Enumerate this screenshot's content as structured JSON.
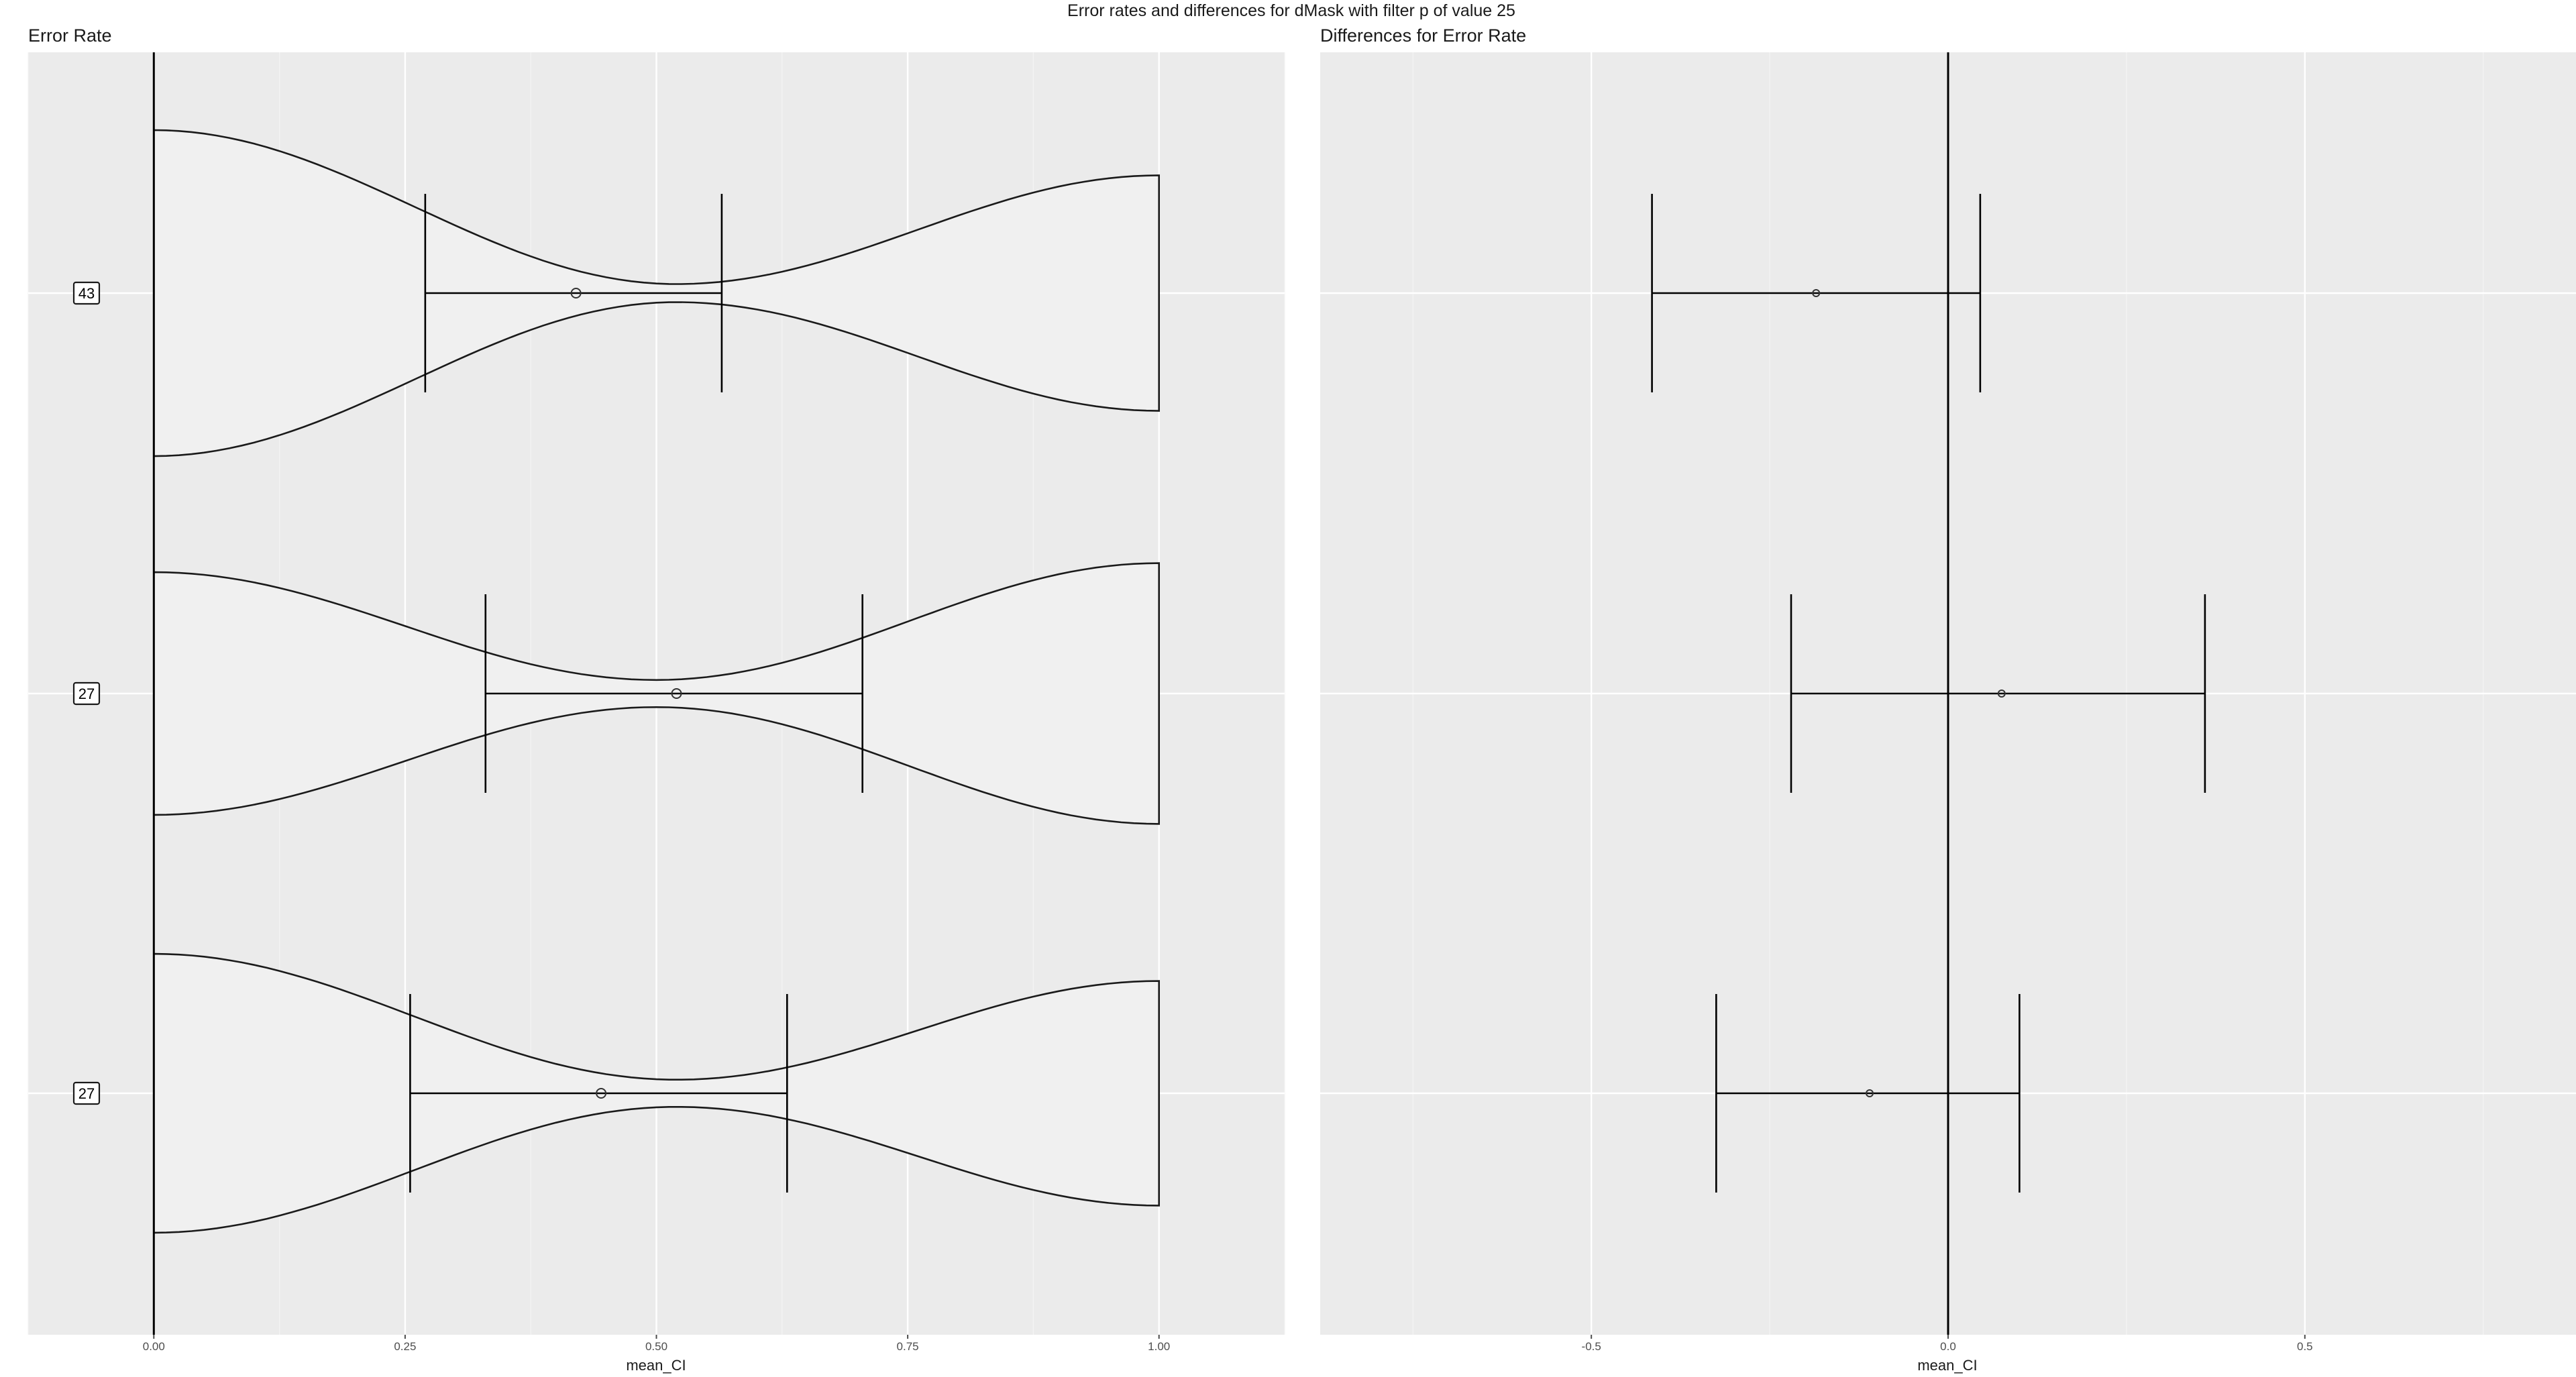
{
  "figure": {
    "title": "Error rates and differences for dMask with filter p of value 25"
  },
  "chart_data": [
    {
      "type": "violin",
      "title": "Error Rate",
      "xlabel": "mean_CI",
      "ylabel": "",
      "xlim": [
        -0.125,
        1.125
      ],
      "x_ticks": [
        0.0,
        0.25,
        0.5,
        0.75,
        1.0
      ],
      "x_tick_labels": [
        "0.00",
        "0.25",
        "0.50",
        "0.75",
        "1.00"
      ],
      "grid": true,
      "categories": [
        "43",
        "27",
        "27"
      ],
      "series": [
        {
          "label": "43",
          "mean": 0.42,
          "ci": [
            0.27,
            0.565
          ],
          "support": [
            0.0,
            1.0
          ],
          "halfwidth_at_0": 0.9,
          "halfwidth_at_1": 0.65,
          "halfwidth_min": 0.05,
          "narrowest_at": 0.52
        },
        {
          "label": "27",
          "mean": 0.52,
          "ci": [
            0.33,
            0.705
          ],
          "support": [
            0.0,
            1.0
          ],
          "halfwidth_at_0": 0.67,
          "halfwidth_at_1": 0.72,
          "halfwidth_min": 0.075,
          "narrowest_at": 0.5
        },
        {
          "label": "27",
          "mean": 0.445,
          "ci": [
            0.255,
            0.63
          ],
          "support": [
            0.0,
            1.0
          ],
          "halfwidth_at_0": 0.77,
          "halfwidth_at_1": 0.62,
          "halfwidth_min": 0.075,
          "narrowest_at": 0.52
        }
      ]
    },
    {
      "type": "errorbar",
      "title": "Differences for Error Rate",
      "xlabel": "mean_CI",
      "ylabel": "",
      "xlim": [
        -0.88,
        0.88
      ],
      "x_ticks": [
        -0.5,
        0.0,
        0.5
      ],
      "x_tick_labels": [
        "-0.5",
        "0.0",
        "0.5"
      ],
      "grid": true,
      "reference_line": 0.0,
      "series": [
        {
          "mean": -0.185,
          "ci": [
            -0.415,
            0.045
          ]
        },
        {
          "mean": 0.075,
          "ci": [
            -0.22,
            0.36
          ]
        },
        {
          "mean": -0.11,
          "ci": [
            -0.325,
            0.1
          ]
        }
      ]
    }
  ]
}
